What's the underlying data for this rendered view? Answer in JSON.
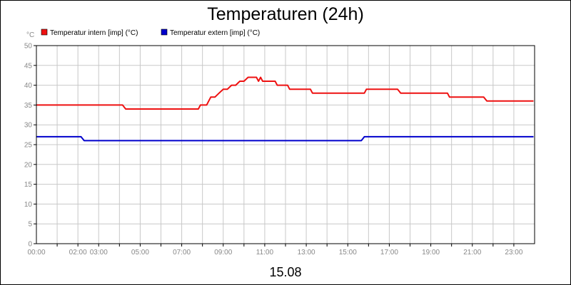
{
  "chart_data": {
    "type": "line",
    "title": "Temperaturen (24h)",
    "ylabel": "°C",
    "xlabel": "15.08",
    "ylim": [
      0,
      50
    ],
    "yticks": [
      0,
      5,
      10,
      15,
      20,
      25,
      30,
      35,
      40,
      45,
      50
    ],
    "xlim": [
      0,
      24
    ],
    "xticks": [
      {
        "x": 0,
        "label": "00:00"
      },
      {
        "x": 2,
        "label": "02:00"
      },
      {
        "x": 3,
        "label": "03:00"
      },
      {
        "x": 5,
        "label": "05:00"
      },
      {
        "x": 7,
        "label": "07:00"
      },
      {
        "x": 9,
        "label": "09:00"
      },
      {
        "x": 11,
        "label": "11:00"
      },
      {
        "x": 13,
        "label": "13:00"
      },
      {
        "x": 15,
        "label": "15:00"
      },
      {
        "x": 17,
        "label": "17:00"
      },
      {
        "x": 19,
        "label": "19:00"
      },
      {
        "x": 21,
        "label": "21:00"
      },
      {
        "x": 23,
        "label": "23:00"
      }
    ],
    "grid": true,
    "legend_placement": "top-left",
    "series": [
      {
        "name": "Temperatur intern [imp] (°C)",
        "color": "#ee1111",
        "x": [
          0,
          4.15,
          4.3,
          7.8,
          7.9,
          8.2,
          8.3,
          8.4,
          8.6,
          8.8,
          9.0,
          9.2,
          9.4,
          9.6,
          9.8,
          10.0,
          10.2,
          10.6,
          10.7,
          10.8,
          10.9,
          11.1,
          11.5,
          11.6,
          12.1,
          12.2,
          13.2,
          13.3,
          15.8,
          15.9,
          17.4,
          17.55,
          19.8,
          19.9,
          21.55,
          21.7,
          23.95
        ],
        "y": [
          35,
          35,
          34,
          34,
          35,
          35,
          36,
          37,
          37,
          38,
          39,
          39,
          40,
          40,
          41,
          41,
          42,
          42,
          41,
          42,
          41,
          41,
          41,
          40,
          40,
          39,
          39,
          38,
          38,
          39,
          39,
          38,
          38,
          37,
          37,
          36,
          36
        ]
      },
      {
        "name": "Temperatur extern [imp] (°C)",
        "color": "#0000cc",
        "x": [
          0,
          2.15,
          2.3,
          15.65,
          15.8,
          23.95
        ],
        "y": [
          27,
          27,
          26,
          26,
          27,
          27
        ]
      }
    ]
  }
}
